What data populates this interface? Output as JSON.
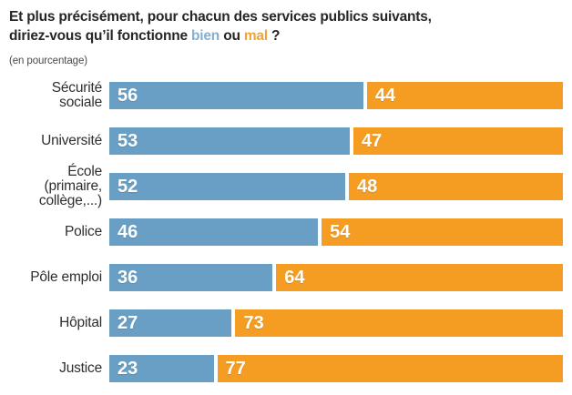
{
  "title": {
    "line1": "Et plus précisément, pour chacun des services publics suivants,",
    "line2_prefix": "diriez-vous qu’il fonctionne ",
    "word_bien": "bien",
    "line2_middle": " ou ",
    "word_mal": "mal",
    "line2_suffix": " ?"
  },
  "subtitle": "(en pourcentage)",
  "colors": {
    "bien_bar": "#699fc5",
    "mal_bar": "#f59d22",
    "title_bien": "#85afd0",
    "title_mal": "#f1a338",
    "title_text": "#262626",
    "label_text": "#2e2e2e"
  },
  "chart_data": {
    "type": "bar",
    "orientation": "horizontal",
    "stacked": true,
    "unit": "percent",
    "title": "Et plus précisément, pour chacun des services publics suivants, diriez-vous qu’il fonctionne bien ou mal ?",
    "subtitle": "(en pourcentage)",
    "categories": [
      "Sécurité\nsociale",
      "Université",
      "École\n(primaire,\ncollège,...)",
      "Police",
      "Pôle emploi",
      "Hôpital",
      "Justice"
    ],
    "series": [
      {
        "name": "bien",
        "color": "#699fc5",
        "values": [
          56,
          53,
          52,
          46,
          36,
          27,
          23
        ]
      },
      {
        "name": "mal",
        "color": "#f59d22",
        "values": [
          44,
          47,
          48,
          54,
          64,
          73,
          77
        ]
      }
    ],
    "xlim": [
      0,
      100
    ],
    "value_labels": "inside-start",
    "legend": "in-title-colored-words",
    "grid": false
  }
}
